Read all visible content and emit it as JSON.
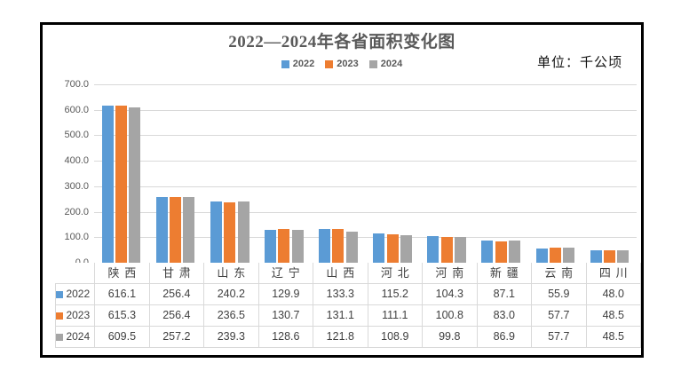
{
  "chart_data": {
    "type": "bar",
    "title": "2022—2024年各省面积变化图",
    "unit_label": "单位：千公顷",
    "categories": [
      "陕西",
      "甘肃",
      "山东",
      "辽宁",
      "山西",
      "河北",
      "河南",
      "新疆",
      "云南",
      "四川"
    ],
    "series": [
      {
        "name": "2022",
        "color": "#5B9BD5",
        "values": [
          616.1,
          256.4,
          240.2,
          129.9,
          133.3,
          115.2,
          104.3,
          87.1,
          55.9,
          48.0
        ]
      },
      {
        "name": "2023",
        "color": "#ED7D31",
        "values": [
          615.3,
          256.4,
          236.5,
          130.7,
          131.1,
          111.1,
          100.8,
          83.0,
          57.7,
          48.5
        ]
      },
      {
        "name": "2024",
        "color": "#A5A5A5",
        "values": [
          609.5,
          257.2,
          239.3,
          128.6,
          121.8,
          108.9,
          99.8,
          86.9,
          57.7,
          48.5
        ]
      }
    ],
    "ylim": [
      0,
      700
    ],
    "ytick_step": 100,
    "yticks": [
      "700.0",
      "600.0",
      "500.0",
      "400.0",
      "300.0",
      "200.0",
      "100.0",
      "0.0"
    ],
    "grid": true,
    "legend_position": "top",
    "data_table_shown": true,
    "grid_color": "#D9D9D9"
  }
}
